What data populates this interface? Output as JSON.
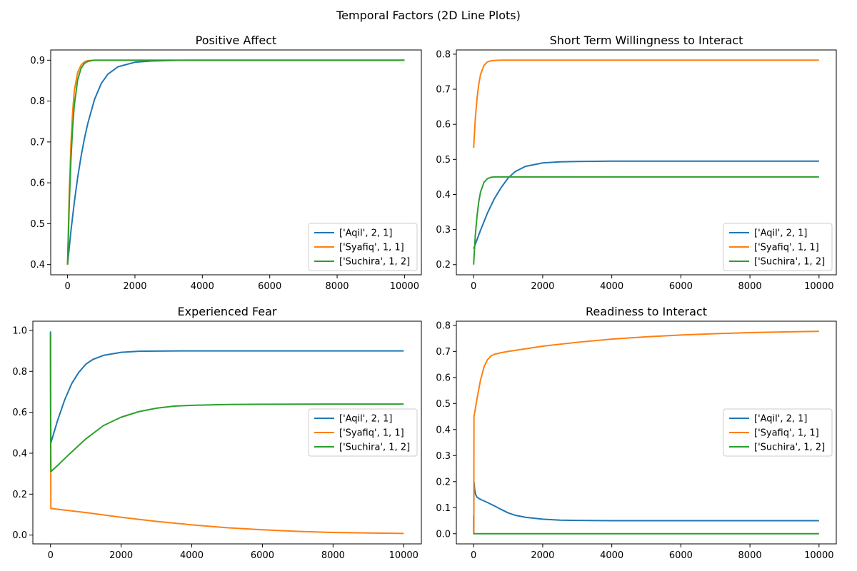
{
  "suptitle": "Temporal Factors (2D Line Plots)",
  "colors": {
    "Aqil": "#1f77b4",
    "Syafiq": "#ff7f0e",
    "Suchira": "#2ca02c"
  },
  "chart_data": [
    {
      "type": "line",
      "title": "Positive Affect",
      "xlim": [
        -500,
        10500
      ],
      "ylim": [
        0.375,
        0.925
      ],
      "xticks": [
        0,
        2000,
        4000,
        6000,
        8000,
        10000
      ],
      "yticks": [
        0.4,
        0.5,
        0.6,
        0.7,
        0.8,
        0.9
      ],
      "ytick_labels": [
        "0.4",
        "0.5",
        "0.6",
        "0.7",
        "0.8",
        "0.9"
      ],
      "legend": "lower-right",
      "series": [
        {
          "name": "['Aqil', 2, 1]",
          "color": "#1f77b4",
          "x": [
            0,
            100,
            200,
            300,
            400,
            500,
            600,
            800,
            1000,
            1200,
            1500,
            2000,
            2500,
            3000,
            3500,
            4000,
            6000,
            8000,
            10000
          ],
          "y": [
            0.4,
            0.482,
            0.552,
            0.613,
            0.664,
            0.708,
            0.745,
            0.804,
            0.843,
            0.866,
            0.884,
            0.895,
            0.898,
            0.899,
            0.9,
            0.9,
            0.9,
            0.9,
            0.9
          ]
        },
        {
          "name": "['Syafiq', 1, 1]",
          "color": "#ff7f0e",
          "x": [
            0,
            50,
            100,
            150,
            200,
            300,
            400,
            500,
            600,
            800,
            1000,
            2000,
            4000,
            6000,
            8000,
            10000
          ],
          "y": [
            0.4,
            0.573,
            0.693,
            0.772,
            0.826,
            0.87,
            0.888,
            0.896,
            0.899,
            0.9,
            0.9,
            0.9,
            0.9,
            0.9,
            0.9,
            0.9
          ]
        },
        {
          "name": "['Suchira', 1, 2]",
          "color": "#2ca02c",
          "x": [
            0,
            50,
            100,
            150,
            200,
            300,
            400,
            500,
            600,
            800,
            1000,
            2000,
            4000,
            6000,
            8000,
            10000
          ],
          "y": [
            0.4,
            0.547,
            0.655,
            0.734,
            0.79,
            0.852,
            0.88,
            0.892,
            0.897,
            0.9,
            0.9,
            0.9,
            0.9,
            0.9,
            0.9,
            0.9
          ]
        }
      ]
    },
    {
      "type": "line",
      "title": "Short Term Willingness to Interact",
      "xlim": [
        -500,
        10500
      ],
      "ylim": [
        0.171,
        0.812
      ],
      "xticks": [
        0,
        2000,
        4000,
        6000,
        8000,
        10000
      ],
      "yticks": [
        0.2,
        0.3,
        0.4,
        0.5,
        0.6,
        0.7,
        0.8
      ],
      "ytick_labels": [
        "0.2",
        "0.3",
        "0.4",
        "0.5",
        "0.6",
        "0.7",
        "0.8"
      ],
      "legend": "lower-right",
      "series": [
        {
          "name": "['Aqil', 2, 1]",
          "color": "#1f77b4",
          "x": [
            0,
            200,
            400,
            600,
            800,
            1000,
            1200,
            1500,
            2000,
            2500,
            3000,
            4000,
            6000,
            8000,
            10000
          ],
          "y": [
            0.245,
            0.298,
            0.347,
            0.388,
            0.42,
            0.447,
            0.465,
            0.48,
            0.49,
            0.493,
            0.494,
            0.495,
            0.495,
            0.495,
            0.495
          ]
        },
        {
          "name": "['Syafiq', 1, 1]",
          "color": "#ff7f0e",
          "x": [
            0,
            50,
            100,
            150,
            200,
            300,
            400,
            500,
            600,
            800,
            1000,
            2000,
            4000,
            6000,
            8000,
            10000
          ],
          "y": [
            0.533,
            0.617,
            0.675,
            0.715,
            0.742,
            0.768,
            0.778,
            0.781,
            0.782,
            0.783,
            0.783,
            0.783,
            0.783,
            0.783,
            0.783,
            0.783
          ]
        },
        {
          "name": "['Suchira', 1, 2]",
          "color": "#2ca02c",
          "x": [
            0,
            50,
            100,
            150,
            200,
            300,
            400,
            500,
            600,
            800,
            1000,
            2000,
            4000,
            6000,
            8000,
            10000
          ],
          "y": [
            0.2,
            0.285,
            0.34,
            0.38,
            0.407,
            0.435,
            0.445,
            0.449,
            0.45,
            0.45,
            0.45,
            0.45,
            0.45,
            0.45,
            0.45,
            0.45
          ]
        }
      ]
    },
    {
      "type": "line",
      "title": "Experienced Fear",
      "xlim": [
        -500,
        10500
      ],
      "ylim": [
        -0.043,
        1.045
      ],
      "xticks": [
        0,
        2000,
        4000,
        6000,
        8000,
        10000
      ],
      "yticks": [
        0.0,
        0.2,
        0.4,
        0.6,
        0.8,
        1.0
      ],
      "ytick_labels": [
        "0.0",
        "0.2",
        "0.4",
        "0.6",
        "0.8",
        "1.0"
      ],
      "legend": "center-right",
      "series": [
        {
          "name": "['Aqil', 2, 1]",
          "color": "#1f77b4",
          "x": [
            0,
            5,
            10,
            200,
            400,
            600,
            800,
            1000,
            1200,
            1500,
            2000,
            2500,
            3000,
            4000,
            6000,
            8000,
            10000
          ],
          "y": [
            0.995,
            0.6,
            0.45,
            0.56,
            0.66,
            0.74,
            0.795,
            0.835,
            0.858,
            0.878,
            0.893,
            0.898,
            0.899,
            0.9,
            0.9,
            0.9,
            0.9
          ]
        },
        {
          "name": "['Syafiq', 1, 1]",
          "color": "#ff7f0e",
          "x": [
            0,
            5,
            10,
            1000,
            2000,
            3000,
            4000,
            5000,
            6000,
            7000,
            8000,
            9000,
            10000
          ],
          "y": [
            0.98,
            0.5,
            0.13,
            0.11,
            0.087,
            0.067,
            0.05,
            0.036,
            0.026,
            0.018,
            0.013,
            0.01,
            0.008
          ]
        },
        {
          "name": "['Suchira', 1, 2]",
          "color": "#2ca02c",
          "x": [
            0,
            5,
            10,
            200,
            500,
            1000,
            1500,
            2000,
            2500,
            3000,
            3500,
            4000,
            5000,
            6000,
            8000,
            10000
          ],
          "y": [
            0.985,
            0.5,
            0.31,
            0.34,
            0.39,
            0.47,
            0.535,
            0.576,
            0.603,
            0.62,
            0.63,
            0.634,
            0.638,
            0.639,
            0.64,
            0.64
          ]
        }
      ]
    },
    {
      "type": "line",
      "title": "Readiness to Interact",
      "xlim": [
        -500,
        10500
      ],
      "ylim": [
        -0.039,
        0.816
      ],
      "xticks": [
        0,
        2000,
        4000,
        6000,
        8000,
        10000
      ],
      "yticks": [
        0.0,
        0.1,
        0.2,
        0.3,
        0.4,
        0.5,
        0.6,
        0.7,
        0.8
      ],
      "ytick_labels": [
        "0.0",
        "0.1",
        "0.2",
        "0.3",
        "0.4",
        "0.5",
        "0.6",
        "0.7",
        "0.8"
      ],
      "legend": "center-right",
      "series": [
        {
          "name": "['Aqil', 2, 1]",
          "color": "#1f77b4",
          "x": [
            0,
            2,
            5,
            10,
            30,
            60,
            100,
            200,
            400,
            600,
            800,
            1000,
            1200,
            1500,
            2000,
            2500,
            3000,
            4000,
            6000,
            8000,
            10000
          ],
          "y": [
            0.07,
            0.0,
            0.0,
            0.2,
            0.17,
            0.15,
            0.14,
            0.132,
            0.12,
            0.107,
            0.093,
            0.08,
            0.071,
            0.063,
            0.056,
            0.052,
            0.051,
            0.05,
            0.05,
            0.05,
            0.05
          ]
        },
        {
          "name": "['Syafiq', 1, 1]",
          "color": "#ff7f0e",
          "x": [
            0,
            2,
            5,
            10,
            50,
            100,
            200,
            300,
            400,
            500,
            600,
            800,
            1000,
            2000,
            3000,
            4000,
            5000,
            6000,
            7000,
            8000,
            9000,
            10000
          ],
          "y": [
            0.0,
            0.0,
            0.0,
            0.45,
            0.48,
            0.52,
            0.59,
            0.64,
            0.668,
            0.682,
            0.689,
            0.695,
            0.7,
            0.72,
            0.735,
            0.747,
            0.756,
            0.763,
            0.768,
            0.772,
            0.775,
            0.777
          ]
        },
        {
          "name": "['Suchira', 1, 2]",
          "color": "#2ca02c",
          "x": [
            0,
            10000
          ],
          "y": [
            0.0,
            0.0
          ]
        }
      ]
    }
  ]
}
